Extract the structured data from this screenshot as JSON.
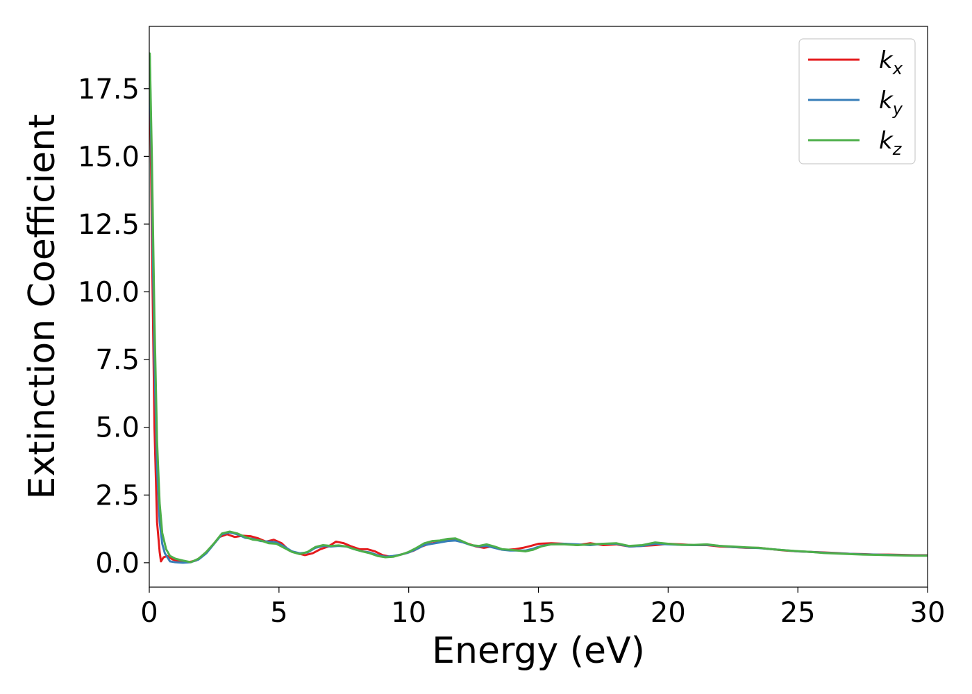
{
  "chart_data": {
    "type": "line",
    "xlabel": "Energy (eV)",
    "ylabel": "Extinction Coefficient",
    "xlim": [
      0,
      30
    ],
    "ylim": [
      -0.9,
      19.8
    ],
    "xticks": [
      0,
      5,
      10,
      15,
      20,
      25,
      30
    ],
    "xtick_labels": [
      "0",
      "5",
      "10",
      "15",
      "20",
      "25",
      "30"
    ],
    "yticks": [
      0.0,
      2.5,
      5.0,
      7.5,
      10.0,
      12.5,
      15.0,
      17.5
    ],
    "ytick_labels": [
      "0.0",
      "2.5",
      "5.0",
      "7.5",
      "10.0",
      "12.5",
      "15.0",
      "17.5"
    ],
    "grid": false,
    "legend_position": "top-right",
    "series": [
      {
        "name": "k_x",
        "label_base": "k",
        "label_sub": "x",
        "color": "#e41a1c",
        "points": [
          [
            0.02,
            18.6
          ],
          [
            0.1,
            12.0
          ],
          [
            0.2,
            5.0
          ],
          [
            0.3,
            1.5
          ],
          [
            0.4,
            0.4
          ],
          [
            0.45,
            0.05
          ],
          [
            0.55,
            0.2
          ],
          [
            0.7,
            0.25
          ],
          [
            0.9,
            0.12
          ],
          [
            1.2,
            0.05
          ],
          [
            1.5,
            0.02
          ],
          [
            1.8,
            0.08
          ],
          [
            2.1,
            0.3
          ],
          [
            2.4,
            0.6
          ],
          [
            2.7,
            0.95
          ],
          [
            3.0,
            1.05
          ],
          [
            3.3,
            0.95
          ],
          [
            3.6,
            1.0
          ],
          [
            3.9,
            0.98
          ],
          [
            4.2,
            0.9
          ],
          [
            4.5,
            0.78
          ],
          [
            4.8,
            0.85
          ],
          [
            5.1,
            0.72
          ],
          [
            5.4,
            0.45
          ],
          [
            5.7,
            0.35
          ],
          [
            6.0,
            0.28
          ],
          [
            6.3,
            0.35
          ],
          [
            6.6,
            0.5
          ],
          [
            6.9,
            0.6
          ],
          [
            7.2,
            0.78
          ],
          [
            7.5,
            0.72
          ],
          [
            7.8,
            0.6
          ],
          [
            8.1,
            0.5
          ],
          [
            8.4,
            0.5
          ],
          [
            8.7,
            0.42
          ],
          [
            9.0,
            0.28
          ],
          [
            9.3,
            0.22
          ],
          [
            9.6,
            0.28
          ],
          [
            9.9,
            0.35
          ],
          [
            10.2,
            0.45
          ],
          [
            10.5,
            0.6
          ],
          [
            10.8,
            0.7
          ],
          [
            11.1,
            0.75
          ],
          [
            11.4,
            0.8
          ],
          [
            11.7,
            0.85
          ],
          [
            12.0,
            0.78
          ],
          [
            12.3,
            0.7
          ],
          [
            12.6,
            0.6
          ],
          [
            12.9,
            0.55
          ],
          [
            13.2,
            0.6
          ],
          [
            13.5,
            0.5
          ],
          [
            13.8,
            0.48
          ],
          [
            14.1,
            0.5
          ],
          [
            14.4,
            0.55
          ],
          [
            14.7,
            0.62
          ],
          [
            15.0,
            0.7
          ],
          [
            15.5,
            0.72
          ],
          [
            16.0,
            0.7
          ],
          [
            16.5,
            0.65
          ],
          [
            17.0,
            0.72
          ],
          [
            17.5,
            0.65
          ],
          [
            18.0,
            0.68
          ],
          [
            18.5,
            0.6
          ],
          [
            19.0,
            0.62
          ],
          [
            19.5,
            0.65
          ],
          [
            20.0,
            0.7
          ],
          [
            20.5,
            0.68
          ],
          [
            21.0,
            0.65
          ],
          [
            21.5,
            0.65
          ],
          [
            22.0,
            0.6
          ],
          [
            22.5,
            0.58
          ],
          [
            23.0,
            0.55
          ],
          [
            23.5,
            0.55
          ],
          [
            24.0,
            0.5
          ],
          [
            24.5,
            0.45
          ],
          [
            25.0,
            0.42
          ],
          [
            25.5,
            0.4
          ],
          [
            26.0,
            0.38
          ],
          [
            26.5,
            0.36
          ],
          [
            27.0,
            0.33
          ],
          [
            27.5,
            0.32
          ],
          [
            28.0,
            0.3
          ],
          [
            28.5,
            0.3
          ],
          [
            29.0,
            0.29
          ],
          [
            29.5,
            0.28
          ],
          [
            30.0,
            0.28
          ]
        ]
      },
      {
        "name": "k_y",
        "label_base": "k",
        "label_sub": "y",
        "color": "#377eb8",
        "points": [
          [
            0.02,
            18.7
          ],
          [
            0.1,
            14.0
          ],
          [
            0.2,
            7.5
          ],
          [
            0.3,
            3.5
          ],
          [
            0.4,
            1.5
          ],
          [
            0.5,
            0.7
          ],
          [
            0.6,
            0.35
          ],
          [
            0.8,
            0.05
          ],
          [
            1.0,
            0.02
          ],
          [
            1.3,
            0.0
          ],
          [
            1.6,
            0.02
          ],
          [
            1.9,
            0.12
          ],
          [
            2.2,
            0.35
          ],
          [
            2.5,
            0.7
          ],
          [
            2.8,
            1.05
          ],
          [
            3.1,
            1.12
          ],
          [
            3.4,
            1.05
          ],
          [
            3.7,
            0.92
          ],
          [
            4.0,
            0.88
          ],
          [
            4.3,
            0.8
          ],
          [
            4.6,
            0.78
          ],
          [
            4.9,
            0.75
          ],
          [
            5.2,
            0.6
          ],
          [
            5.5,
            0.42
          ],
          [
            5.8,
            0.35
          ],
          [
            6.1,
            0.38
          ],
          [
            6.4,
            0.55
          ],
          [
            6.7,
            0.62
          ],
          [
            7.0,
            0.6
          ],
          [
            7.3,
            0.62
          ],
          [
            7.6,
            0.6
          ],
          [
            7.9,
            0.5
          ],
          [
            8.2,
            0.42
          ],
          [
            8.5,
            0.38
          ],
          [
            8.8,
            0.28
          ],
          [
            9.1,
            0.22
          ],
          [
            9.4,
            0.25
          ],
          [
            9.7,
            0.3
          ],
          [
            10.0,
            0.38
          ],
          [
            10.3,
            0.5
          ],
          [
            10.6,
            0.65
          ],
          [
            10.9,
            0.7
          ],
          [
            11.2,
            0.75
          ],
          [
            11.5,
            0.8
          ],
          [
            11.8,
            0.82
          ],
          [
            12.1,
            0.75
          ],
          [
            12.4,
            0.65
          ],
          [
            12.7,
            0.6
          ],
          [
            13.0,
            0.62
          ],
          [
            13.3,
            0.55
          ],
          [
            13.6,
            0.48
          ],
          [
            13.9,
            0.45
          ],
          [
            14.2,
            0.45
          ],
          [
            14.5,
            0.45
          ],
          [
            14.8,
            0.52
          ],
          [
            15.1,
            0.62
          ],
          [
            15.5,
            0.68
          ],
          [
            16.0,
            0.7
          ],
          [
            16.5,
            0.68
          ],
          [
            17.0,
            0.65
          ],
          [
            17.5,
            0.7
          ],
          [
            18.0,
            0.7
          ],
          [
            18.5,
            0.6
          ],
          [
            19.0,
            0.62
          ],
          [
            19.5,
            0.7
          ],
          [
            20.0,
            0.68
          ],
          [
            20.5,
            0.66
          ],
          [
            21.0,
            0.65
          ],
          [
            21.5,
            0.66
          ],
          [
            22.0,
            0.62
          ],
          [
            22.5,
            0.58
          ],
          [
            23.0,
            0.56
          ],
          [
            23.5,
            0.54
          ],
          [
            24.0,
            0.5
          ],
          [
            24.5,
            0.46
          ],
          [
            25.0,
            0.42
          ],
          [
            25.5,
            0.4
          ],
          [
            26.0,
            0.37
          ],
          [
            26.5,
            0.35
          ],
          [
            27.0,
            0.33
          ],
          [
            27.5,
            0.31
          ],
          [
            28.0,
            0.3
          ],
          [
            28.5,
            0.29
          ],
          [
            29.0,
            0.28
          ],
          [
            29.5,
            0.27
          ],
          [
            30.0,
            0.27
          ]
        ]
      },
      {
        "name": "k_z",
        "label_base": "k",
        "label_sub": "z",
        "color": "#4daf4a",
        "points": [
          [
            0.02,
            18.8
          ],
          [
            0.1,
            15.0
          ],
          [
            0.2,
            9.0
          ],
          [
            0.3,
            4.5
          ],
          [
            0.4,
            2.2
          ],
          [
            0.5,
            1.1
          ],
          [
            0.65,
            0.5
          ],
          [
            0.8,
            0.25
          ],
          [
            1.0,
            0.15
          ],
          [
            1.3,
            0.08
          ],
          [
            1.6,
            0.02
          ],
          [
            1.9,
            0.15
          ],
          [
            2.2,
            0.4
          ],
          [
            2.5,
            0.72
          ],
          [
            2.8,
            1.08
          ],
          [
            3.1,
            1.15
          ],
          [
            3.4,
            1.08
          ],
          [
            3.7,
            0.95
          ],
          [
            4.0,
            0.85
          ],
          [
            4.3,
            0.82
          ],
          [
            4.6,
            0.72
          ],
          [
            4.9,
            0.7
          ],
          [
            5.2,
            0.55
          ],
          [
            5.5,
            0.4
          ],
          [
            5.8,
            0.32
          ],
          [
            6.1,
            0.4
          ],
          [
            6.4,
            0.58
          ],
          [
            6.7,
            0.65
          ],
          [
            7.0,
            0.62
          ],
          [
            7.3,
            0.64
          ],
          [
            7.6,
            0.6
          ],
          [
            7.9,
            0.5
          ],
          [
            8.2,
            0.42
          ],
          [
            8.5,
            0.35
          ],
          [
            8.8,
            0.25
          ],
          [
            9.1,
            0.2
          ],
          [
            9.4,
            0.22
          ],
          [
            9.7,
            0.3
          ],
          [
            10.0,
            0.4
          ],
          [
            10.3,
            0.55
          ],
          [
            10.6,
            0.72
          ],
          [
            10.9,
            0.8
          ],
          [
            11.2,
            0.82
          ],
          [
            11.5,
            0.88
          ],
          [
            11.8,
            0.9
          ],
          [
            12.1,
            0.78
          ],
          [
            12.4,
            0.65
          ],
          [
            12.7,
            0.62
          ],
          [
            13.0,
            0.68
          ],
          [
            13.3,
            0.6
          ],
          [
            13.6,
            0.5
          ],
          [
            13.9,
            0.48
          ],
          [
            14.2,
            0.45
          ],
          [
            14.5,
            0.42
          ],
          [
            14.8,
            0.48
          ],
          [
            15.1,
            0.6
          ],
          [
            15.5,
            0.68
          ],
          [
            16.0,
            0.68
          ],
          [
            16.5,
            0.65
          ],
          [
            17.0,
            0.68
          ],
          [
            17.5,
            0.7
          ],
          [
            18.0,
            0.72
          ],
          [
            18.5,
            0.62
          ],
          [
            19.0,
            0.65
          ],
          [
            19.5,
            0.75
          ],
          [
            20.0,
            0.7
          ],
          [
            20.5,
            0.66
          ],
          [
            21.0,
            0.66
          ],
          [
            21.5,
            0.68
          ],
          [
            22.0,
            0.62
          ],
          [
            22.5,
            0.6
          ],
          [
            23.0,
            0.57
          ],
          [
            23.5,
            0.55
          ],
          [
            24.0,
            0.5
          ],
          [
            24.5,
            0.46
          ],
          [
            25.0,
            0.43
          ],
          [
            25.5,
            0.4
          ],
          [
            26.0,
            0.36
          ],
          [
            26.5,
            0.34
          ],
          [
            27.0,
            0.32
          ],
          [
            27.5,
            0.3
          ],
          [
            28.0,
            0.29
          ],
          [
            28.5,
            0.28
          ],
          [
            29.0,
            0.27
          ],
          [
            29.5,
            0.26
          ],
          [
            30.0,
            0.26
          ]
        ]
      }
    ]
  }
}
